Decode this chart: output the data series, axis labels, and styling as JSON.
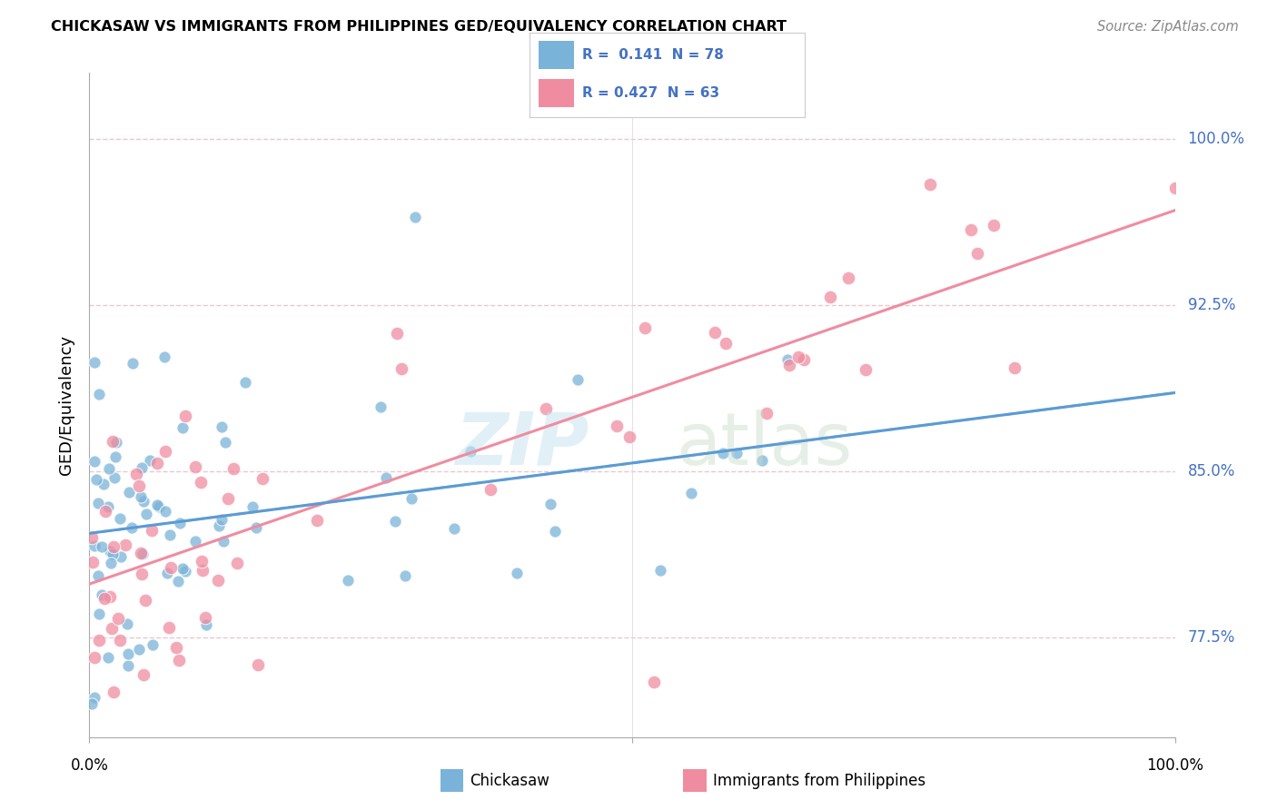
{
  "title": "CHICKASAW VS IMMIGRANTS FROM PHILIPPINES GED/EQUIVALENCY CORRELATION CHART",
  "source": "Source: ZipAtlas.com",
  "ylabel": "GED/Equivalency",
  "ytick_vals": [
    77.5,
    85.0,
    92.5,
    100.0
  ],
  "ytick_labels": [
    "77.5%",
    "85.0%",
    "92.5%",
    "100.0%"
  ],
  "xlim": [
    0.0,
    100.0
  ],
  "ylim": [
    73.0,
    103.0
  ],
  "blue_color": "#7ab3d9",
  "pink_color": "#f08ca0",
  "blue_line_color": "#5b9bd5",
  "pink_line_color": "#f08ca0",
  "dashed_line_color": "#a0c8d8",
  "grid_color": "#e8c8d0",
  "legend_r1": "R =  0.141  N = 78",
  "legend_r2": "R = 0.427  N = 63",
  "legend_text_color": "#4472c4",
  "right_tick_color": "#4472c4",
  "watermark_zip": "ZIP",
  "watermark_atlas": "atlas",
  "bottom_label1": "Chickasaw",
  "bottom_label2": "Immigrants from Philippines"
}
